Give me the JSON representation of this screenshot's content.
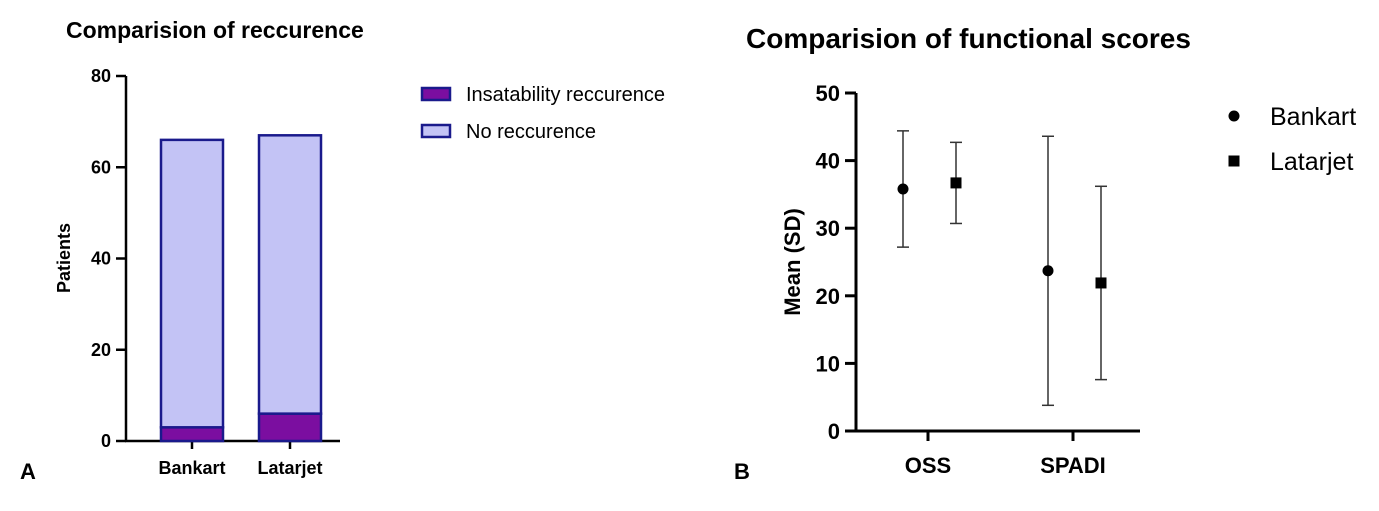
{
  "panels": {
    "a_letter": "A",
    "b_letter": "B"
  },
  "colors": {
    "insability": "#7B0EA0",
    "no_recurrence": "#C3C3F5",
    "outline": "#1A1A8C",
    "axis": "#000000",
    "errorbar": "#333333"
  },
  "chart_data": [
    {
      "type": "bar",
      "stacked": true,
      "title": "Comparision of reccurence",
      "xlabel": "",
      "ylabel": "Patients",
      "ylim": [
        0,
        80
      ],
      "yticks": [
        "0",
        "20",
        "40",
        "60",
        "80"
      ],
      "categories": [
        "Bankart",
        "Latarjet"
      ],
      "legend_position": "top-right",
      "series": [
        {
          "name": "Insatability reccurence",
          "values": [
            3,
            6
          ]
        },
        {
          "name": "No reccurence",
          "values": [
            63,
            61
          ]
        }
      ]
    },
    {
      "type": "scatter",
      "title": "Comparision of functional scores",
      "xlabel": "",
      "ylabel": "Mean (SD)",
      "ylim": [
        0,
        50
      ],
      "yticks": [
        "0",
        "10",
        "20",
        "30",
        "40",
        "50"
      ],
      "categories": [
        "OSS",
        "SPADI"
      ],
      "legend_position": "top-right",
      "series": [
        {
          "name": "Bankart",
          "marker": "circle",
          "means": [
            35.8,
            23.7
          ],
          "sd": [
            8.6,
            19.9
          ]
        },
        {
          "name": "Latarjet",
          "marker": "square",
          "means": [
            36.7,
            21.9
          ],
          "sd": [
            6.0,
            14.3
          ]
        }
      ]
    }
  ]
}
